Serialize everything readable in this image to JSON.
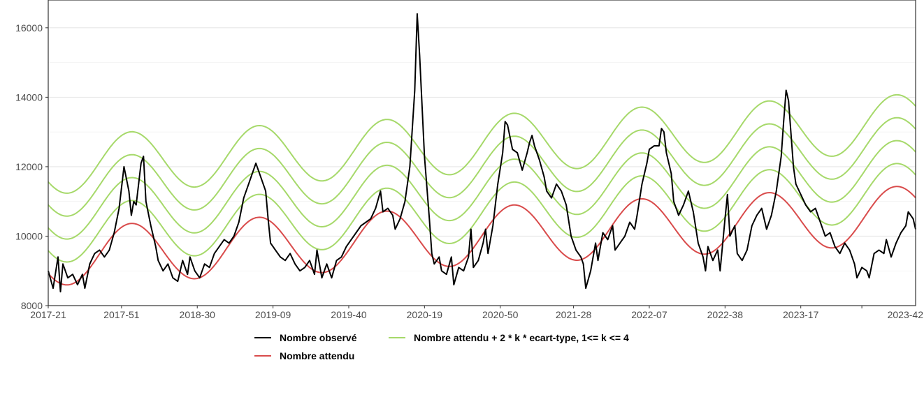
{
  "chart_data": {
    "type": "line",
    "title": "",
    "xlabel": "",
    "ylabel": "",
    "ylim": [
      8000,
      16800
    ],
    "y_ticks": [
      8000,
      10000,
      12000,
      14000,
      16000
    ],
    "x_tick_labels": [
      "2017-21",
      "2017-51",
      "2018-30",
      "2019-09",
      "2019-40",
      "2020-19",
      "2020-50",
      "2021-28",
      "2022-07",
      "2022-38",
      "2023-17",
      "2023-42"
    ],
    "x_tick_week_index": [
      0,
      30,
      61,
      92,
      123,
      154,
      185,
      215,
      246,
      277,
      308,
      333
    ],
    "x_range_weeks": [
      0,
      336
    ],
    "grid": true,
    "legend_placement": "bottom",
    "colors": {
      "observed": "#000000",
      "expected": "#d94b4b",
      "thresholds": "#a6d96a"
    },
    "observed_anchors": [
      [
        0,
        9000
      ],
      [
        2,
        8500
      ],
      [
        4,
        9400
      ],
      [
        5,
        8400
      ],
      [
        6,
        9200
      ],
      [
        8,
        8800
      ],
      [
        10,
        8900
      ],
      [
        12,
        8600
      ],
      [
        14,
        8900
      ],
      [
        15,
        8500
      ],
      [
        17,
        9200
      ],
      [
        19,
        9500
      ],
      [
        21,
        9600
      ],
      [
        23,
        9400
      ],
      [
        25,
        9600
      ],
      [
        27,
        10100
      ],
      [
        29,
        10800
      ],
      [
        31,
        12000
      ],
      [
        33,
        11300
      ],
      [
        34,
        10600
      ],
      [
        35,
        11000
      ],
      [
        36,
        10900
      ],
      [
        38,
        12100
      ],
      [
        39,
        12300
      ],
      [
        40,
        11000
      ],
      [
        42,
        10300
      ],
      [
        44,
        9700
      ],
      [
        45,
        9300
      ],
      [
        47,
        9000
      ],
      [
        49,
        9200
      ],
      [
        51,
        8800
      ],
      [
        53,
        8700
      ],
      [
        55,
        9300
      ],
      [
        57,
        8900
      ],
      [
        58,
        9400
      ],
      [
        60,
        9000
      ],
      [
        62,
        8800
      ],
      [
        64,
        9200
      ],
      [
        66,
        9100
      ],
      [
        68,
        9500
      ],
      [
        70,
        9700
      ],
      [
        72,
        9900
      ],
      [
        74,
        9800
      ],
      [
        76,
        10000
      ],
      [
        78,
        10400
      ],
      [
        80,
        11100
      ],
      [
        82,
        11500
      ],
      [
        84,
        11900
      ],
      [
        85,
        12100
      ],
      [
        87,
        11700
      ],
      [
        89,
        11300
      ],
      [
        90,
        10500
      ],
      [
        91,
        9800
      ],
      [
        93,
        9600
      ],
      [
        95,
        9400
      ],
      [
        97,
        9300
      ],
      [
        99,
        9500
      ],
      [
        101,
        9200
      ],
      [
        103,
        9000
      ],
      [
        105,
        9100
      ],
      [
        107,
        9300
      ],
      [
        109,
        8900
      ],
      [
        110,
        9600
      ],
      [
        112,
        8800
      ],
      [
        114,
        9200
      ],
      [
        116,
        8800
      ],
      [
        118,
        9300
      ],
      [
        120,
        9400
      ],
      [
        122,
        9700
      ],
      [
        124,
        9900
      ],
      [
        126,
        10100
      ],
      [
        128,
        10300
      ],
      [
        130,
        10400
      ],
      [
        132,
        10500
      ],
      [
        134,
        10800
      ],
      [
        136,
        11300
      ],
      [
        137,
        10700
      ],
      [
        139,
        10800
      ],
      [
        141,
        10600
      ],
      [
        142,
        10200
      ],
      [
        144,
        10500
      ],
      [
        146,
        11000
      ],
      [
        148,
        12000
      ],
      [
        150,
        14200
      ],
      [
        151,
        16400
      ],
      [
        152,
        15200
      ],
      [
        154,
        12300
      ],
      [
        156,
        10500
      ],
      [
        157,
        9500
      ],
      [
        158,
        9200
      ],
      [
        160,
        9400
      ],
      [
        161,
        9000
      ],
      [
        163,
        8900
      ],
      [
        165,
        9400
      ],
      [
        166,
        8600
      ],
      [
        168,
        9100
      ],
      [
        170,
        9000
      ],
      [
        172,
        9400
      ],
      [
        173,
        10200
      ],
      [
        174,
        9100
      ],
      [
        176,
        9300
      ],
      [
        178,
        9800
      ],
      [
        179,
        10200
      ],
      [
        180,
        9500
      ],
      [
        182,
        10300
      ],
      [
        184,
        11500
      ],
      [
        186,
        12400
      ],
      [
        187,
        13300
      ],
      [
        188,
        13200
      ],
      [
        190,
        12500
      ],
      [
        192,
        12400
      ],
      [
        194,
        11900
      ],
      [
        196,
        12400
      ],
      [
        197,
        12700
      ],
      [
        198,
        12900
      ],
      [
        199,
        12600
      ],
      [
        201,
        12200
      ],
      [
        203,
        11700
      ],
      [
        204,
        11300
      ],
      [
        206,
        11100
      ],
      [
        208,
        11500
      ],
      [
        210,
        11300
      ],
      [
        212,
        10900
      ],
      [
        214,
        10000
      ],
      [
        216,
        9600
      ],
      [
        218,
        9400
      ],
      [
        219,
        9200
      ],
      [
        220,
        8500
      ],
      [
        222,
        9000
      ],
      [
        224,
        9800
      ],
      [
        225,
        9300
      ],
      [
        227,
        10100
      ],
      [
        229,
        9900
      ],
      [
        231,
        10300
      ],
      [
        232,
        9600
      ],
      [
        234,
        9800
      ],
      [
        236,
        10000
      ],
      [
        238,
        10400
      ],
      [
        240,
        10200
      ],
      [
        241,
        10600
      ],
      [
        243,
        11500
      ],
      [
        245,
        12100
      ],
      [
        246,
        12500
      ],
      [
        248,
        12600
      ],
      [
        250,
        12600
      ],
      [
        251,
        13100
      ],
      [
        252,
        13000
      ],
      [
        253,
        12400
      ],
      [
        255,
        11800
      ],
      [
        256,
        11000
      ],
      [
        258,
        10600
      ],
      [
        260,
        10900
      ],
      [
        262,
        11300
      ],
      [
        264,
        10700
      ],
      [
        266,
        9800
      ],
      [
        268,
        9400
      ],
      [
        269,
        9000
      ],
      [
        270,
        9700
      ],
      [
        272,
        9300
      ],
      [
        274,
        9600
      ],
      [
        275,
        9000
      ],
      [
        277,
        10500
      ],
      [
        278,
        11200
      ],
      [
        279,
        10000
      ],
      [
        281,
        10300
      ],
      [
        282,
        9500
      ],
      [
        284,
        9300
      ],
      [
        286,
        9600
      ],
      [
        288,
        10300
      ],
      [
        290,
        10600
      ],
      [
        292,
        10800
      ],
      [
        294,
        10200
      ],
      [
        296,
        10600
      ],
      [
        298,
        11300
      ],
      [
        300,
        12300
      ],
      [
        301,
        13300
      ],
      [
        302,
        14200
      ],
      [
        303,
        13900
      ],
      [
        305,
        12000
      ],
      [
        306,
        11500
      ],
      [
        308,
        11200
      ],
      [
        310,
        10900
      ],
      [
        312,
        10700
      ],
      [
        314,
        10800
      ],
      [
        316,
        10400
      ],
      [
        318,
        10000
      ],
      [
        320,
        10100
      ],
      [
        322,
        9700
      ],
      [
        324,
        9500
      ],
      [
        326,
        9800
      ],
      [
        328,
        9600
      ],
      [
        330,
        9200
      ],
      [
        331,
        8800
      ],
      [
        333,
        9100
      ],
      [
        335,
        9000
      ],
      [
        336,
        8800
      ],
      [
        338,
        9500
      ],
      [
        340,
        9600
      ],
      [
        342,
        9500
      ],
      [
        343,
        9900
      ],
      [
        345,
        9400
      ],
      [
        347,
        9800
      ],
      [
        349,
        10100
      ],
      [
        351,
        10300
      ],
      [
        352,
        10700
      ],
      [
        354,
        10500
      ],
      [
        355,
        10200
      ]
    ],
    "expected_model": {
      "base": 9410,
      "trend_per_week": 3.4,
      "amplitude": 840,
      "period_weeks": 52.18,
      "peak_week": 34
    },
    "threshold_sd": 330,
    "threshold_k": [
      1,
      2,
      3,
      4
    ],
    "legend": [
      {
        "label": "Nombre observé",
        "series": "observed"
      },
      {
        "label": "Nombre attendu + 2 * k * ecart-type, 1<= k <= 4",
        "series": "thresholds"
      },
      {
        "label": "Nombre attendu",
        "series": "expected"
      }
    ]
  }
}
